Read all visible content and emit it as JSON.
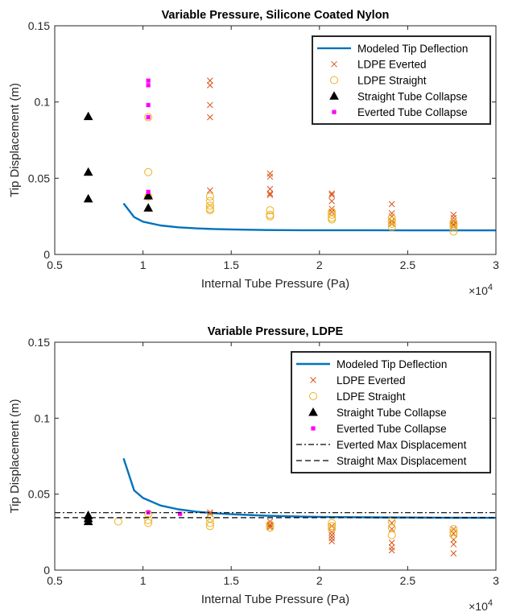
{
  "chart_data": [
    {
      "type": "scatter",
      "title": "Variable Pressure, Silicone Coated Nylon",
      "xlabel": "Internal Tube Pressure (Pa)",
      "ylabel": "Tip Displacement (m)",
      "xlim": [
        5000,
        30000
      ],
      "ylim": [
        0,
        0.15
      ],
      "xticks": [
        5000,
        10000,
        15000,
        20000,
        25000,
        30000
      ],
      "xtick_labels": [
        "0.5",
        "1",
        "1.5",
        "2",
        "2.5",
        "3"
      ],
      "yticks": [
        0,
        0.05,
        0.1,
        0.15
      ],
      "ytick_labels": [
        "0",
        "0.05",
        "0.1",
        "0.15"
      ],
      "x_multiplier_base": "×10",
      "x_multiplier_exp": "4",
      "legend_position": "top-right",
      "series": [
        {
          "name": "Modeled Tip Deflection",
          "kind": "line",
          "color": "#0072BD",
          "x": [
            8900,
            9500,
            10000,
            11000,
            12000,
            13000,
            14000,
            15000,
            17000,
            19000,
            21000,
            23000,
            25000,
            27000,
            30000
          ],
          "y": [
            0.0335,
            0.0245,
            0.0215,
            0.019,
            0.0178,
            0.0171,
            0.0167,
            0.0164,
            0.016,
            0.0159,
            0.0159,
            0.0159,
            0.0158,
            0.0158,
            0.0158
          ]
        },
        {
          "name": "LDPE Everted",
          "kind": "x",
          "color": "#D95319",
          "x": [
            13800,
            13800,
            13800,
            13800,
            13800,
            17200,
            17200,
            17200,
            17200,
            17200,
            20700,
            20700,
            20700,
            20700,
            20700,
            24100,
            24100,
            24100,
            24100,
            24100,
            27600,
            27600,
            27600,
            27600,
            27600
          ],
          "y": [
            0.114,
            0.111,
            0.098,
            0.09,
            0.042,
            0.053,
            0.051,
            0.043,
            0.04,
            0.039,
            0.04,
            0.039,
            0.035,
            0.03,
            0.028,
            0.033,
            0.027,
            0.025,
            0.022,
            0.02,
            0.026,
            0.024,
            0.022,
            0.02,
            0.019
          ]
        },
        {
          "name": "LDPE Straight",
          "kind": "circle",
          "color": "#EDB120",
          "x": [
            10300,
            10300,
            10300,
            13800,
            13800,
            13800,
            13800,
            13800,
            17200,
            17200,
            17200,
            20700,
            20700,
            20700,
            20700,
            24100,
            24100,
            24100,
            24100,
            27600,
            27600,
            27600,
            27600
          ],
          "y": [
            0.09,
            0.054,
            0.038,
            0.038,
            0.035,
            0.032,
            0.03,
            0.029,
            0.029,
            0.026,
            0.025,
            0.028,
            0.026,
            0.024,
            0.023,
            0.024,
            0.022,
            0.02,
            0.018,
            0.021,
            0.02,
            0.018,
            0.015
          ]
        },
        {
          "name": "Straight Tube Collapse",
          "kind": "triangle",
          "color": "#000000",
          "x": [
            6900,
            6900,
            6900,
            10300,
            10300
          ],
          "y": [
            0.0905,
            0.054,
            0.0365,
            0.0385,
            0.0305
          ]
        },
        {
          "name": "Everted Tube Collapse",
          "kind": "square",
          "color": "#FF00FF",
          "x": [
            10300,
            10300,
            10300,
            10300,
            10300
          ],
          "y": [
            0.114,
            0.111,
            0.098,
            0.09,
            0.041
          ]
        }
      ]
    },
    {
      "type": "scatter",
      "title": "Variable Pressure, LDPE",
      "xlabel": "Internal Tube Pressure (Pa)",
      "ylabel": "Tip Displacement (m)",
      "xlim": [
        5000,
        30000
      ],
      "ylim": [
        0,
        0.15
      ],
      "xticks": [
        5000,
        10000,
        15000,
        20000,
        25000,
        30000
      ],
      "xtick_labels": [
        "0.5",
        "1",
        "1.5",
        "2",
        "2.5",
        "3"
      ],
      "yticks": [
        0,
        0.05,
        0.1,
        0.15
      ],
      "ytick_labels": [
        "0",
        "0.05",
        "0.1",
        "0.15"
      ],
      "x_multiplier_base": "×10",
      "x_multiplier_exp": "4",
      "legend_position": "top-right",
      "series": [
        {
          "name": "Modeled Tip Deflection",
          "kind": "line",
          "color": "#0072BD",
          "x": [
            8900,
            9500,
            10000,
            11000,
            12000,
            13000,
            14000,
            15000,
            17000,
            19000,
            21000,
            23000,
            25000,
            27000,
            30000
          ],
          "y": [
            0.0735,
            0.0525,
            0.0475,
            0.0425,
            0.04,
            0.0385,
            0.0375,
            0.0368,
            0.0358,
            0.0352,
            0.0349,
            0.0347,
            0.0346,
            0.0345,
            0.0344
          ]
        },
        {
          "name": "LDPE Everted",
          "kind": "x",
          "color": "#D95319",
          "x": [
            13800,
            13800,
            17200,
            17200,
            17200,
            17200,
            20700,
            20700,
            20700,
            20700,
            20700,
            24100,
            24100,
            24100,
            24100,
            24100,
            27600,
            27600,
            27600,
            27600,
            27600
          ],
          "y": [
            0.038,
            0.037,
            0.032,
            0.03,
            0.029,
            0.028,
            0.029,
            0.025,
            0.023,
            0.021,
            0.019,
            0.031,
            0.027,
            0.018,
            0.015,
            0.013,
            0.027,
            0.024,
            0.02,
            0.017,
            0.011
          ]
        },
        {
          "name": "LDPE Straight",
          "kind": "circle",
          "color": "#EDB120",
          "x": [
            8600,
            10300,
            10300,
            10300,
            13800,
            13800,
            13800,
            17200,
            17200,
            20700,
            20700,
            20700,
            24100,
            24100,
            24100,
            27600,
            27600,
            27600
          ],
          "y": [
            0.032,
            0.037,
            0.033,
            0.031,
            0.034,
            0.031,
            0.029,
            0.03,
            0.028,
            0.031,
            0.029,
            0.027,
            0.032,
            0.028,
            0.023,
            0.027,
            0.025,
            0.023
          ]
        },
        {
          "name": "Straight Tube Collapse",
          "kind": "triangle",
          "color": "#000000",
          "x": [
            6900,
            6900,
            6900
          ],
          "y": [
            0.036,
            0.034,
            0.032
          ]
        },
        {
          "name": "Everted Tube Collapse",
          "kind": "square",
          "color": "#FF00FF",
          "x": [
            10300,
            12100
          ],
          "y": [
            0.038,
            0.037
          ]
        },
        {
          "name": "Everted Max Displacement",
          "kind": "hline-dashdot",
          "color": "#000000",
          "y": 0.0378
        },
        {
          "name": "Straight Max Displacement",
          "kind": "hline-dashed",
          "color": "#000000",
          "y": 0.0345
        }
      ]
    }
  ]
}
